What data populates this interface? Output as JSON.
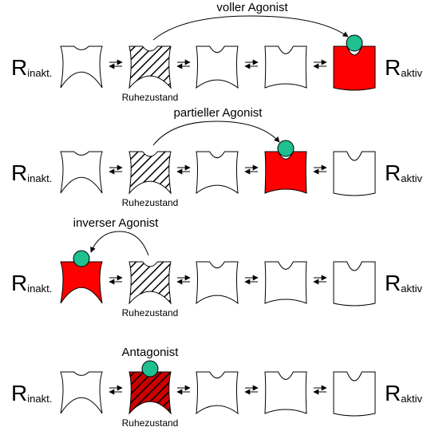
{
  "labels": {
    "r_symbol": "R",
    "inactive_sub": "inakt.",
    "active_sub": "aktiv",
    "rest_state": "Ruhezustand"
  },
  "colors": {
    "active_fill": "#ff0000",
    "ligand_fill": "#1fbf8f",
    "hatch_fill": "#000000",
    "antagonist_bg": "#cc0000"
  },
  "rows": [
    {
      "id": "full-agonist",
      "label": "voller Agonist",
      "colored_state": 4,
      "hatched_state": 1,
      "ligand_state": 4,
      "arrow_from": 1,
      "arrow_to": 4
    },
    {
      "id": "partial-agonist",
      "label": "partieller Agonist",
      "colored_state": 3,
      "hatched_state": 1,
      "ligand_state": 3,
      "arrow_from": 1,
      "arrow_to": 3
    },
    {
      "id": "inverse-agonist",
      "label": "inverser Agonist",
      "colored_state": 0,
      "hatched_state": 1,
      "ligand_state": 0,
      "arrow_from": 1,
      "arrow_to": 0
    },
    {
      "id": "antagonist",
      "label": "Antagonist",
      "colored_state": -1,
      "hatched_state": 1,
      "ligand_state": 1,
      "arrow_from": -1,
      "arrow_to": -1,
      "hatched_red": true
    }
  ]
}
